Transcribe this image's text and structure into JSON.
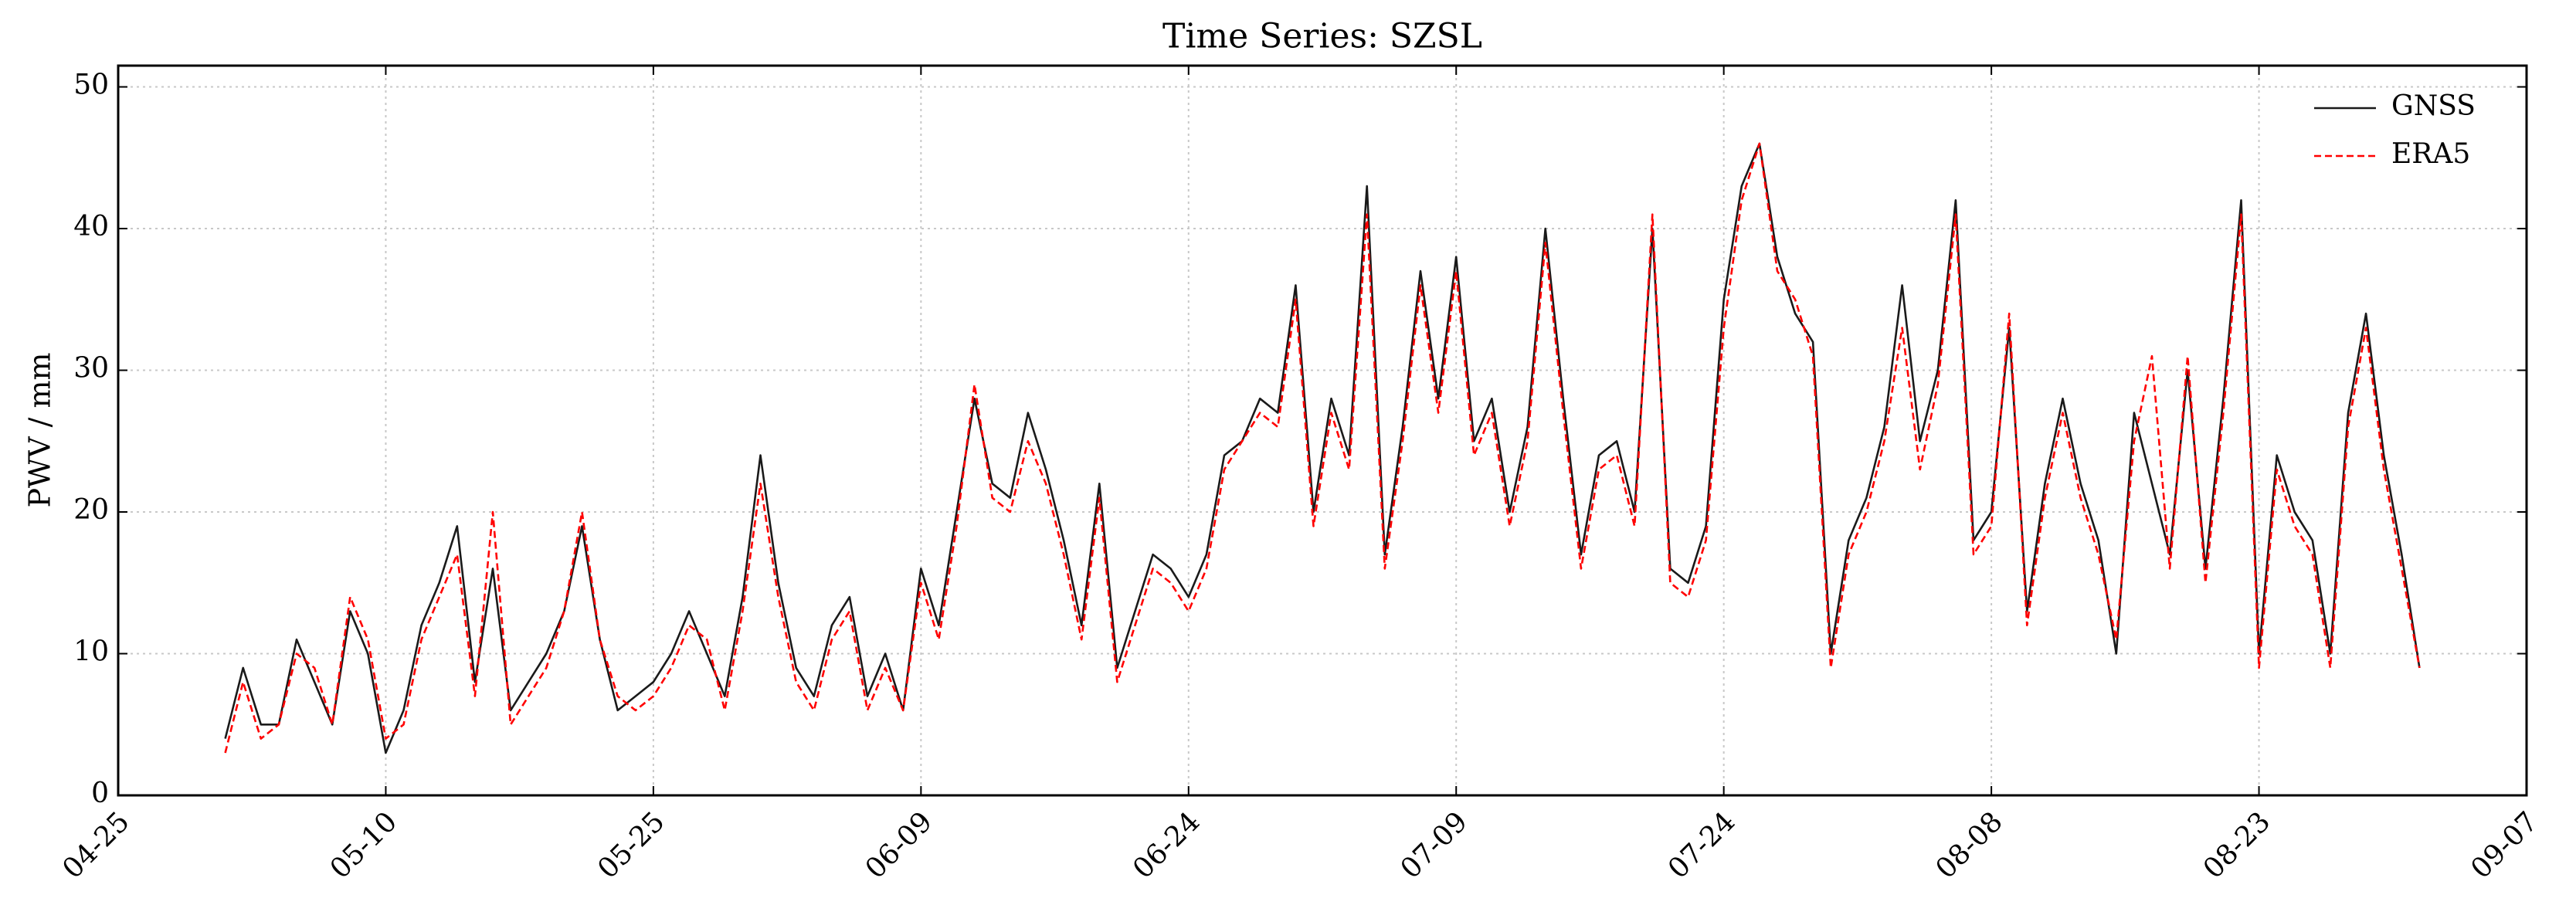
{
  "chart_data": {
    "type": "line",
    "title": "Time Series: SZSL",
    "y_label": "PWV / mm",
    "x": [
      "05-01",
      "05-02",
      "05-03",
      "05-04",
      "05-05",
      "05-06",
      "05-07",
      "05-08",
      "05-09",
      "05-10",
      "05-11",
      "05-12",
      "05-13",
      "05-14",
      "05-15",
      "05-16",
      "05-17",
      "05-18",
      "05-19",
      "05-20",
      "05-21",
      "05-22",
      "05-23",
      "05-24",
      "05-25",
      "05-26",
      "05-27",
      "05-28",
      "05-29",
      "05-30",
      "05-31",
      "06-01",
      "06-02",
      "06-03",
      "06-04",
      "06-05",
      "06-06",
      "06-07",
      "06-08",
      "06-09",
      "06-10",
      "06-11",
      "06-12",
      "06-13",
      "06-14",
      "06-15",
      "06-16",
      "06-17",
      "06-18",
      "06-19",
      "06-20",
      "06-21",
      "06-22",
      "06-23",
      "06-24",
      "06-25",
      "06-26",
      "06-27",
      "06-28",
      "06-29",
      "06-30",
      "07-01",
      "07-02",
      "07-03",
      "07-04",
      "07-05",
      "07-06",
      "07-07",
      "07-08",
      "07-09",
      "07-10",
      "07-11",
      "07-12",
      "07-13",
      "07-14",
      "07-15",
      "07-16",
      "07-17",
      "07-18",
      "07-19",
      "07-20",
      "07-21",
      "07-22",
      "07-23",
      "07-24",
      "07-25",
      "07-26",
      "07-27",
      "07-28",
      "07-29",
      "07-30",
      "07-31",
      "08-01",
      "08-02",
      "08-03",
      "08-04",
      "08-05",
      "08-06",
      "08-07",
      "08-08",
      "08-09",
      "08-10",
      "08-11",
      "08-12",
      "08-13",
      "08-14",
      "08-15",
      "08-16",
      "08-17",
      "08-18",
      "08-19",
      "08-20",
      "08-21",
      "08-22",
      "08-23",
      "08-24",
      "08-25",
      "08-26",
      "08-27",
      "08-28",
      "08-29",
      "08-30",
      "08-31",
      "09-01"
    ],
    "series": [
      {
        "name": "GNSS",
        "color": "#1a1a1a",
        "dash": false,
        "values": [
          4,
          9,
          5,
          5,
          11,
          8,
          5,
          13,
          10,
          3,
          6,
          12,
          15,
          19,
          8,
          16,
          6,
          8,
          10,
          13,
          19,
          11,
          6,
          7,
          8,
          10,
          13,
          10,
          7,
          14,
          24,
          15,
          9,
          7,
          12,
          14,
          7,
          10,
          6,
          16,
          12,
          20,
          28,
          22,
          21,
          27,
          23,
          18,
          12,
          22,
          9,
          13,
          17,
          16,
          14,
          17,
          24,
          25,
          28,
          27,
          36,
          20,
          28,
          24,
          43,
          17,
          26,
          37,
          28,
          38,
          25,
          28,
          20,
          26,
          40,
          28,
          17,
          24,
          25,
          20,
          40,
          16,
          15,
          19,
          35,
          43,
          46,
          38,
          34,
          32,
          10,
          18,
          21,
          26,
          36,
          25,
          30,
          42,
          18,
          20,
          33,
          13,
          22,
          28,
          22,
          18,
          10,
          27,
          22,
          17,
          30,
          16,
          28,
          42,
          10,
          24,
          20,
          18,
          10,
          27,
          34,
          24,
          17,
          9
        ]
      },
      {
        "name": "ERA5",
        "color": "#ff0000",
        "dash": true,
        "values": [
          3,
          8,
          4,
          5,
          10,
          9,
          5,
          14,
          11,
          4,
          5,
          11,
          14,
          17,
          7,
          20,
          5,
          7,
          9,
          13,
          20,
          11,
          7,
          6,
          7,
          9,
          12,
          11,
          6,
          13,
          22,
          14,
          8,
          6,
          11,
          13,
          6,
          9,
          6,
          15,
          11,
          19,
          29,
          21,
          20,
          25,
          22,
          17,
          11,
          21,
          8,
          12,
          16,
          15,
          13,
          16,
          23,
          25,
          27,
          26,
          35,
          19,
          27,
          23,
          41,
          16,
          25,
          36,
          27,
          37,
          24,
          27,
          19,
          25,
          39,
          27,
          16,
          23,
          24,
          19,
          41,
          15,
          14,
          18,
          33,
          42,
          46,
          37,
          35,
          31,
          9,
          17,
          20,
          25,
          33,
          23,
          29,
          41,
          17,
          19,
          34,
          12,
          21,
          27,
          21,
          17,
          11,
          25,
          31,
          16,
          31,
          15,
          27,
          41,
          9,
          23,
          19,
          17,
          9,
          26,
          33,
          23,
          16,
          9
        ]
      }
    ],
    "xlim": [
      "04-25",
      "09-07"
    ],
    "xticks": [
      "04-25",
      "05-10",
      "05-25",
      "06-09",
      "06-24",
      "07-09",
      "07-24",
      "08-08",
      "08-23",
      "09-07"
    ],
    "ylim": [
      0,
      51.5
    ],
    "yticks": [
      0,
      10,
      20,
      30,
      40,
      50
    ],
    "grid": true,
    "legend": "upper right"
  }
}
